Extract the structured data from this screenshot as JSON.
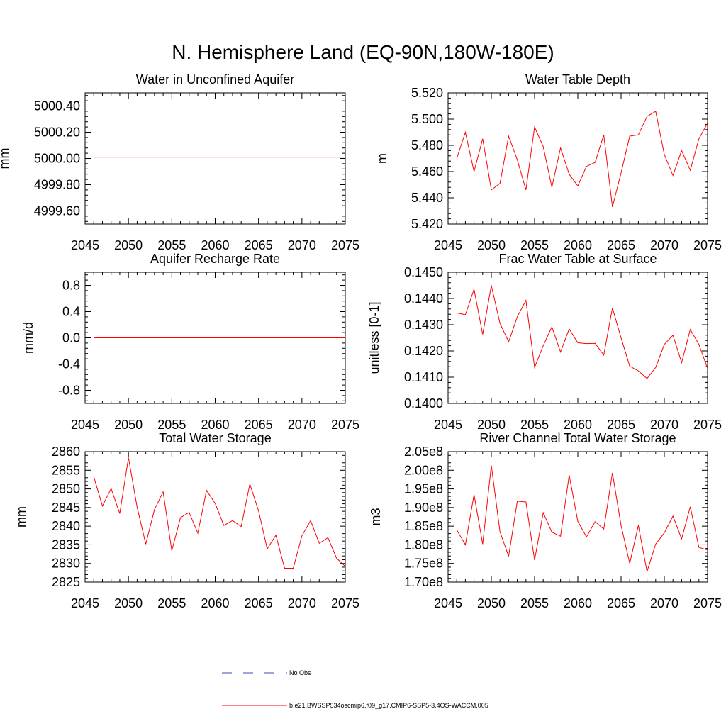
{
  "figure": {
    "title": "N. Hemisphere Land (EQ-90N,180W-180E)"
  },
  "legend": {
    "items": [
      {
        "label": "No Obs",
        "color": "#3b4bb8",
        "style": "dashed"
      },
      {
        "label": "b.e21.BWSSP534oscmip6.f09_g17.CMIP6-SSP5-3.4OS-WACCM.005",
        "color": "#ff0000",
        "style": "solid"
      }
    ]
  },
  "chart_data": [
    {
      "type": "line",
      "title": "Water in Unconfined Aquifer",
      "ylabel": "mm",
      "xlabel": "",
      "xlim": [
        2045,
        2075
      ],
      "ylim": [
        4999.5,
        5000.5
      ],
      "xticks": [
        2045,
        2050,
        2055,
        2060,
        2065,
        2070,
        2075
      ],
      "xtick_labels": [
        "2045",
        "2050",
        "2055",
        "2060",
        "2065",
        "2070",
        "2075"
      ],
      "yticks": [
        4999.6,
        4999.8,
        5000.0,
        5000.2,
        5000.4
      ],
      "ytick_labels": [
        "4999.60",
        "4999.80",
        "5000.00",
        "5000.20",
        "5000.40"
      ],
      "x": [
        2046,
        2047,
        2048,
        2049,
        2050,
        2051,
        2052,
        2053,
        2054,
        2055,
        2056,
        2057,
        2058,
        2059,
        2060,
        2061,
        2062,
        2063,
        2064,
        2065,
        2066,
        2067,
        2068,
        2069,
        2070,
        2071,
        2072,
        2073,
        2074,
        2075
      ],
      "series": [
        {
          "name": "b.e21.BWSSP534oscmip6.f09_g17.CMIP6-SSP5-3.4OS-WACCM.005",
          "color": "#ff0000",
          "values": [
            5000.01,
            5000.01,
            5000.01,
            5000.01,
            5000.01,
            5000.01,
            5000.01,
            5000.01,
            5000.01,
            5000.01,
            5000.01,
            5000.01,
            5000.01,
            5000.01,
            5000.01,
            5000.01,
            5000.01,
            5000.01,
            5000.01,
            5000.01,
            5000.01,
            5000.01,
            5000.01,
            5000.01,
            5000.01,
            5000.01,
            5000.01,
            5000.01,
            5000.01,
            5000.01
          ]
        }
      ]
    },
    {
      "type": "line",
      "title": "Water Table Depth",
      "ylabel": "m",
      "xlabel": "",
      "xlim": [
        2045,
        2075
      ],
      "ylim": [
        5.42,
        5.52
      ],
      "xticks": [
        2045,
        2050,
        2055,
        2060,
        2065,
        2070,
        2075
      ],
      "xtick_labels": [
        "2045",
        "2050",
        "2055",
        "2060",
        "2065",
        "2070",
        "2075"
      ],
      "yticks": [
        5.42,
        5.44,
        5.46,
        5.48,
        5.5,
        5.52
      ],
      "ytick_labels": [
        "5.420",
        "5.440",
        "5.460",
        "5.480",
        "5.500",
        "5.520"
      ],
      "x": [
        2046,
        2047,
        2048,
        2049,
        2050,
        2051,
        2052,
        2053,
        2054,
        2055,
        2056,
        2057,
        2058,
        2059,
        2060,
        2061,
        2062,
        2063,
        2064,
        2065,
        2066,
        2067,
        2068,
        2069,
        2070,
        2071,
        2072,
        2073,
        2074,
        2075
      ],
      "series": [
        {
          "name": "b.e21.BWSSP534oscmip6.f09_g17.CMIP6-SSP5-3.4OS-WACCM.005",
          "color": "#ff0000",
          "values": [
            5.47,
            5.49,
            5.46,
            5.485,
            5.446,
            5.451,
            5.487,
            5.469,
            5.446,
            5.494,
            5.479,
            5.448,
            5.478,
            5.458,
            5.449,
            5.464,
            5.467,
            5.488,
            5.433,
            5.459,
            5.487,
            5.488,
            5.502,
            5.506,
            5.473,
            5.457,
            5.476,
            5.461,
            5.485,
            5.497
          ]
        }
      ]
    },
    {
      "type": "line",
      "title": "Aquifer Recharge Rate",
      "ylabel": "mm/d",
      "xlabel": "",
      "xlim": [
        2045,
        2075
      ],
      "ylim": [
        -1.0,
        1.0
      ],
      "xticks": [
        2045,
        2050,
        2055,
        2060,
        2065,
        2070,
        2075
      ],
      "xtick_labels": [
        "2045",
        "2050",
        "2055",
        "2060",
        "2065",
        "2070",
        "2075"
      ],
      "yticks": [
        -0.8,
        -0.4,
        0.0,
        0.4,
        0.8
      ],
      "ytick_labels": [
        "-0.8",
        "-0.4",
        "0.0",
        "0.4",
        "0.8"
      ],
      "x": [
        2046,
        2047,
        2048,
        2049,
        2050,
        2051,
        2052,
        2053,
        2054,
        2055,
        2056,
        2057,
        2058,
        2059,
        2060,
        2061,
        2062,
        2063,
        2064,
        2065,
        2066,
        2067,
        2068,
        2069,
        2070,
        2071,
        2072,
        2073,
        2074,
        2075
      ],
      "series": [
        {
          "name": "b.e21.BWSSP534oscmip6.f09_g17.CMIP6-SSP5-3.4OS-WACCM.005",
          "color": "#ff0000",
          "values": [
            0,
            0,
            0,
            0,
            0,
            0,
            0,
            0,
            0,
            0,
            0,
            0,
            0,
            0,
            0,
            0,
            0,
            0,
            0,
            0,
            0,
            0,
            0,
            0,
            0,
            0,
            0,
            0,
            0,
            0
          ]
        }
      ]
    },
    {
      "type": "line",
      "title": "Frac Water Table at Surface",
      "ylabel": "unitless [0-1]",
      "xlabel": "",
      "xlim": [
        2045,
        2075
      ],
      "ylim": [
        0.14,
        0.145
      ],
      "xticks": [
        2045,
        2050,
        2055,
        2060,
        2065,
        2070,
        2075
      ],
      "xtick_labels": [
        "2045",
        "2050",
        "2055",
        "2060",
        "2065",
        "2070",
        "2075"
      ],
      "yticks": [
        0.14,
        0.141,
        0.142,
        0.143,
        0.144,
        0.145
      ],
      "ytick_labels": [
        "0.1400",
        "0.1410",
        "0.1420",
        "0.1430",
        "0.1440",
        "0.1450"
      ],
      "x": [
        2046,
        2047,
        2048,
        2049,
        2050,
        2051,
        2052,
        2053,
        2054,
        2055,
        2056,
        2057,
        2058,
        2059,
        2060,
        2061,
        2062,
        2063,
        2064,
        2065,
        2066,
        2067,
        2068,
        2069,
        2070,
        2071,
        2072,
        2073,
        2074,
        2075
      ],
      "series": [
        {
          "name": "b.e21.BWSSP534oscmip6.f09_g17.CMIP6-SSP5-3.4OS-WACCM.005",
          "color": "#ff0000",
          "values": [
            0.14345,
            0.14338,
            0.14435,
            0.14263,
            0.1445,
            0.14305,
            0.14235,
            0.1433,
            0.14393,
            0.14137,
            0.1422,
            0.14292,
            0.14196,
            0.14284,
            0.14231,
            0.14228,
            0.14229,
            0.14184,
            0.14364,
            0.1425,
            0.14142,
            0.14124,
            0.14095,
            0.14137,
            0.14225,
            0.1426,
            0.14155,
            0.14282,
            0.14225,
            0.14133
          ]
        }
      ]
    },
    {
      "type": "line",
      "title": "Total Water Storage",
      "ylabel": "mm",
      "xlabel": "",
      "xlim": [
        2045,
        2075
      ],
      "ylim": [
        2825,
        2860
      ],
      "xticks": [
        2045,
        2050,
        2055,
        2060,
        2065,
        2070,
        2075
      ],
      "xtick_labels": [
        "2045",
        "2050",
        "2055",
        "2060",
        "2065",
        "2070",
        "2075"
      ],
      "yticks": [
        2825,
        2830,
        2835,
        2840,
        2845,
        2850,
        2855,
        2860
      ],
      "ytick_labels": [
        "2825",
        "2830",
        "2835",
        "2840",
        "2845",
        "2850",
        "2855",
        "2860"
      ],
      "x": [
        2046,
        2047,
        2048,
        2049,
        2050,
        2051,
        2052,
        2053,
        2054,
        2055,
        2056,
        2057,
        2058,
        2059,
        2060,
        2061,
        2062,
        2063,
        2064,
        2065,
        2066,
        2067,
        2068,
        2069,
        2070,
        2071,
        2072,
        2073,
        2074,
        2075
      ],
      "series": [
        {
          "name": "b.e21.BWSSP534oscmip6.f09_g17.CMIP6-SSP5-3.4OS-WACCM.005",
          "color": "#ff0000",
          "values": [
            2853.3,
            2845.4,
            2850.1,
            2843.4,
            2858.4,
            2845.1,
            2835.2,
            2844.5,
            2849.2,
            2833.4,
            2842.3,
            2843.7,
            2838.1,
            2849.6,
            2846.1,
            2840.2,
            2841.5,
            2839.9,
            2851.3,
            2844.1,
            2833.9,
            2837.6,
            2828.7,
            2828.7,
            2837.4,
            2841.5,
            2835.4,
            2836.9,
            2831.4,
            2829.2
          ]
        }
      ]
    },
    {
      "type": "line",
      "title": "River Channel Total Water Storage",
      "ylabel": "m3",
      "xlabel": "",
      "xlim": [
        2045,
        2075
      ],
      "ylim": [
        170000000,
        205000000
      ],
      "xticks": [
        2045,
        2050,
        2055,
        2060,
        2065,
        2070,
        2075
      ],
      "xtick_labels": [
        "2045",
        "2050",
        "2055",
        "2060",
        "2065",
        "2070",
        "2075"
      ],
      "yticks": [
        170000000,
        175000000,
        180000000,
        185000000,
        190000000,
        195000000,
        200000000,
        205000000
      ],
      "ytick_labels": [
        "1.70e8",
        "1.75e8",
        "1.80e8",
        "1.85e8",
        "1.90e8",
        "1.95e8",
        "2.00e8",
        "2.05e8"
      ],
      "x": [
        2046,
        2047,
        2048,
        2049,
        2050,
        2051,
        2052,
        2053,
        2054,
        2055,
        2056,
        2057,
        2058,
        2059,
        2060,
        2061,
        2062,
        2063,
        2064,
        2065,
        2066,
        2067,
        2068,
        2069,
        2070,
        2071,
        2072,
        2073,
        2074,
        2075
      ],
      "series": [
        {
          "name": "b.e21.BWSSP534oscmip6.f09_g17.CMIP6-SSP5-3.4OS-WACCM.005",
          "color": "#ff0000",
          "values": [
            184000000,
            180000000,
            193500000,
            180200000,
            201300000,
            183500000,
            176900000,
            191700000,
            191500000,
            175900000,
            188600000,
            183400000,
            182300000,
            198700000,
            186300000,
            182100000,
            186200000,
            184200000,
            199300000,
            185200000,
            175000000,
            185200000,
            172800000,
            180200000,
            183200000,
            187700000,
            181600000,
            190200000,
            179300000,
            178600000
          ]
        }
      ]
    }
  ]
}
